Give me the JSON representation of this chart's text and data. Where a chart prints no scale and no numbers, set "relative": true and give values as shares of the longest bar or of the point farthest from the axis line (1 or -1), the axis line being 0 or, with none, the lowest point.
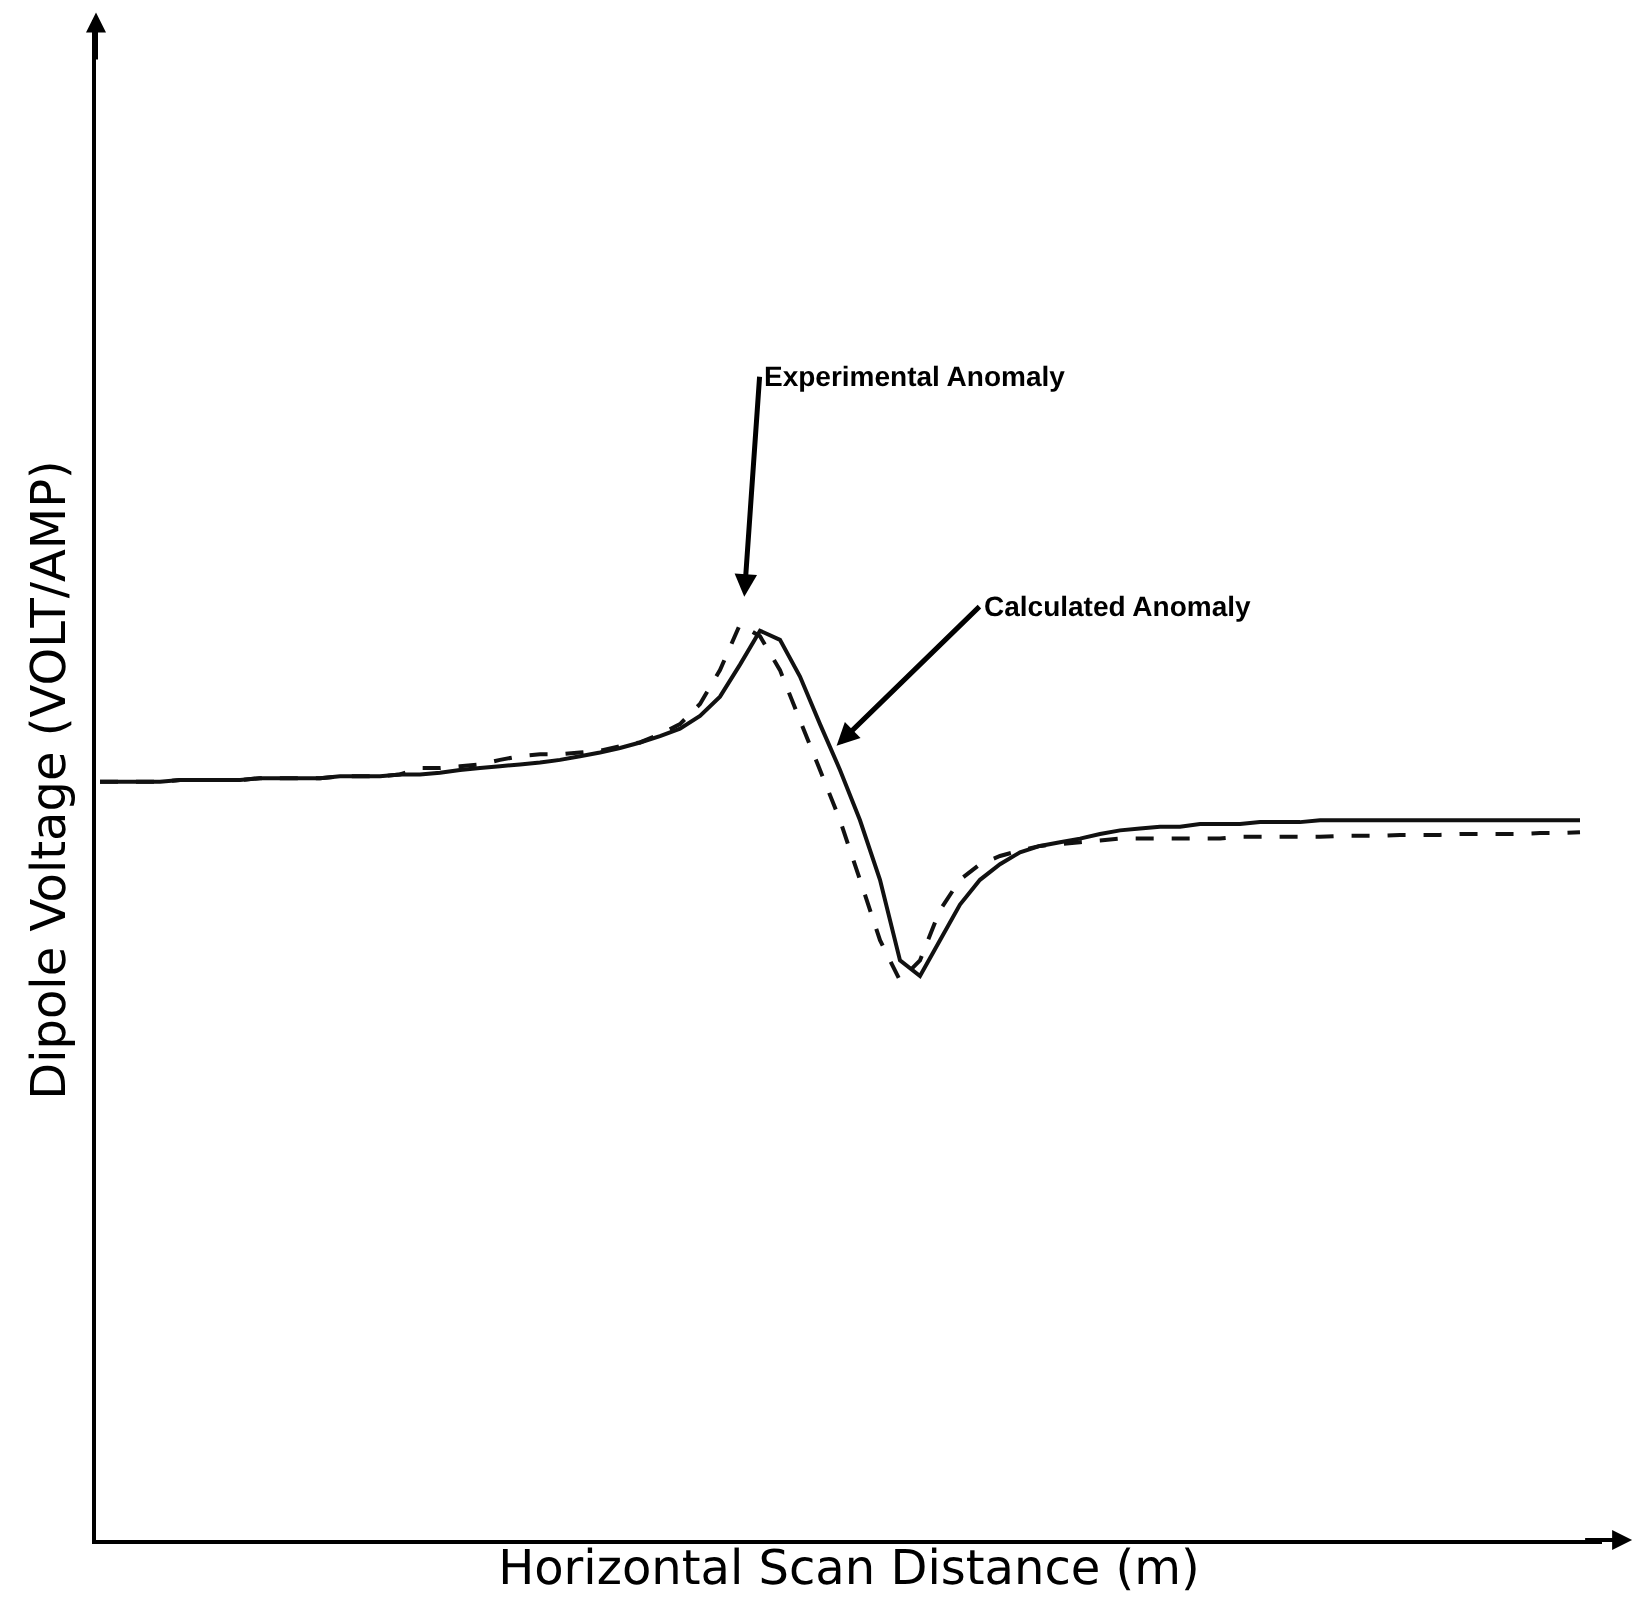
{
  "chart_data": {
    "type": "line",
    "relative": true,
    "xlabel": "Horizontal Scan Distance (m)",
    "ylabel": "Dipole Voltage (VOLT/AMP)",
    "categories": [
      null,
      null,
      null,
      null,
      null,
      null,
      null,
      null,
      null,
      null,
      null,
      null,
      null,
      null,
      null,
      null,
      null,
      null,
      null,
      null,
      null,
      null,
      null,
      null,
      null,
      null,
      null,
      null,
      null,
      null,
      null,
      null,
      null,
      null,
      null,
      null,
      null,
      null,
      null,
      null,
      null,
      null,
      null,
      null,
      null,
      null,
      null,
      null,
      null,
      null,
      null,
      null,
      null,
      null,
      null,
      null,
      null,
      null,
      null,
      null,
      null,
      null,
      null,
      null,
      null,
      null,
      null,
      null,
      null,
      null,
      null,
      null,
      null,
      null,
      null
    ],
    "series": [
      {
        "color": "#111111",
        "line_style": "dashed",
        "values": [
          0.828,
          0.828,
          0.828,
          0.828,
          0.83,
          0.83,
          0.83,
          0.83,
          0.832,
          0.832,
          0.832,
          0.832,
          0.834,
          0.834,
          0.834,
          0.836,
          0.843,
          0.843,
          0.845,
          0.847,
          0.852,
          0.856,
          0.858,
          0.858,
          0.86,
          0.862,
          0.867,
          0.871,
          0.88,
          0.891,
          0.913,
          0.95,
          1.0,
          0.987,
          0.95,
          0.895,
          0.841,
          0.786,
          0.721,
          0.655,
          0.611,
          0.633,
          0.688,
          0.721,
          0.738,
          0.747,
          0.753,
          0.758,
          0.76,
          0.762,
          0.764,
          0.766,
          0.766,
          0.766,
          0.766,
          0.766,
          0.766,
          0.768,
          0.768,
          0.768,
          0.768,
          0.768,
          0.769,
          0.769,
          0.769,
          0.77,
          0.77,
          0.77,
          0.771,
          0.771,
          0.771,
          0.771,
          0.772,
          0.772,
          0.773
        ]
      },
      {
        "color": "#111111",
        "line_style": "solid",
        "values": [
          0.828,
          0.828,
          0.828,
          0.828,
          0.83,
          0.83,
          0.83,
          0.83,
          0.832,
          0.832,
          0.832,
          0.832,
          0.834,
          0.834,
          0.834,
          0.836,
          0.836,
          0.838,
          0.841,
          0.843,
          0.845,
          0.847,
          0.849,
          0.852,
          0.856,
          0.86,
          0.865,
          0.871,
          0.878,
          0.886,
          0.9,
          0.921,
          0.956,
          0.993,
          0.983,
          0.943,
          0.891,
          0.841,
          0.786,
          0.721,
          0.633,
          0.616,
          0.655,
          0.694,
          0.721,
          0.738,
          0.751,
          0.758,
          0.762,
          0.766,
          0.771,
          0.775,
          0.777,
          0.779,
          0.779,
          0.782,
          0.782,
          0.782,
          0.784,
          0.784,
          0.784,
          0.786,
          0.786,
          0.786,
          0.786,
          0.786,
          0.786,
          0.786,
          0.786,
          0.786,
          0.786,
          0.786,
          0.786,
          0.786,
          0.786
        ]
      }
    ],
    "annotations": [
      "Experimental Anomaly",
      "Calculated Anomaly"
    ],
    "marker": "none",
    "tick_labels": false
  }
}
